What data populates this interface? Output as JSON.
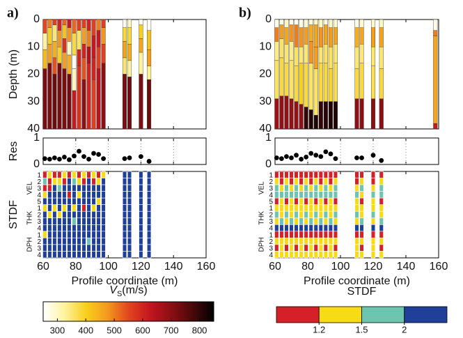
{
  "chart_data": [
    {
      "type": "profile",
      "panel_label": "a)",
      "ylabel_depth": "Depth (m)",
      "ylabel_res": "Res",
      "ylabel_stdf": "STDF",
      "xlabel": "Profile coordinate (m)",
      "xlim": [
        60,
        160
      ],
      "xticks": [
        60,
        80,
        100,
        120,
        140,
        160
      ],
      "ylim": [
        40,
        0
      ],
      "yticks": [
        0,
        10,
        20,
        30,
        40
      ],
      "res_ylim": [
        0,
        1
      ],
      "res_yticks": [
        0,
        1
      ],
      "res_grid": true,
      "stdf_groups": [
        {
          "name": "VEL",
          "rows": [
            1,
            2,
            3,
            4,
            5
          ]
        },
        {
          "name": "THK",
          "rows": [
            1,
            2,
            3,
            4
          ]
        },
        {
          "name": "DPH",
          "rows": [
            1,
            2,
            3,
            4
          ]
        }
      ],
      "x": [
        61,
        64,
        67,
        70,
        73,
        76,
        79,
        82,
        85,
        88,
        91,
        94,
        97,
        110,
        113,
        120,
        125
      ],
      "depths": [
        [
          5,
          11,
          18,
          40
        ],
        [
          3,
          9,
          16,
          40
        ],
        [
          2,
          8,
          14,
          20,
          40
        ],
        [
          4,
          10,
          16,
          40
        ],
        [
          2,
          7,
          12,
          18,
          40
        ],
        [
          3,
          8,
          13,
          20,
          40
        ],
        [
          5,
          13,
          18,
          26,
          40
        ],
        [
          4,
          11,
          17,
          40
        ],
        [
          3,
          9,
          14,
          22,
          40
        ],
        [
          4,
          10,
          16,
          40
        ],
        [
          6,
          14,
          22,
          40
        ],
        [
          4,
          10,
          18,
          40
        ],
        [
          3,
          9,
          16,
          40
        ],
        [
          3,
          8,
          14,
          20,
          40
        ],
        [
          3,
          9,
          15,
          21,
          40
        ],
        [
          2,
          7,
          12,
          20,
          40
        ],
        [
          4,
          11,
          17,
          22,
          40
        ]
      ],
      "vs": [
        [
          550,
          320,
          430,
          720
        ],
        [
          500,
          400,
          470,
          720
        ],
        [
          560,
          350,
          450,
          540,
          740
        ],
        [
          600,
          480,
          400,
          720
        ],
        [
          520,
          420,
          580,
          470,
          720
        ],
        [
          620,
          480,
          300,
          450,
          730
        ],
        [
          520,
          380,
          260,
          300,
          620
        ],
        [
          560,
          360,
          600,
          580
        ],
        [
          560,
          470,
          600,
          540,
          700
        ],
        [
          600,
          500,
          650,
          600
        ],
        [
          560,
          620,
          600,
          560
        ],
        [
          500,
          620,
          560,
          640
        ],
        [
          560,
          480,
          560,
          700
        ],
        [
          260,
          380,
          460,
          350,
          720
        ],
        [
          300,
          380,
          450,
          320,
          730
        ],
        [
          260,
          400,
          460,
          330,
          720
        ],
        [
          260,
          420,
          470,
          330,
          740
        ]
      ],
      "res": [
        0.22,
        0.2,
        0.25,
        0.2,
        0.28,
        0.18,
        0.32,
        0.5,
        0.3,
        0.2,
        0.42,
        0.38,
        0.22,
        0.22,
        0.25,
        0.3,
        0.12
      ],
      "stdf": [
        [
          1.1,
          1.8,
          1.1,
          1.3,
          2.5,
          1.3,
          2.5,
          2.5,
          2.5,
          1.3,
          2.5,
          2.5,
          2.5
        ],
        [
          1.3,
          1.1,
          1.1,
          2.5,
          2.5,
          2.5,
          1.3,
          2.5,
          2.5,
          2.5,
          2.5,
          2.5,
          2.5
        ],
        [
          1.1,
          1.3,
          2.5,
          2.5,
          2.5,
          1.3,
          2.5,
          2.5,
          2.5,
          2.5,
          2.5,
          2.5,
          2.5
        ],
        [
          1.1,
          1.3,
          1.8,
          2.5,
          2.5,
          2.5,
          1.3,
          2.5,
          2.5,
          2.5,
          2.5,
          2.5,
          2.5
        ],
        [
          1.3,
          1.1,
          2.5,
          2.5,
          2.5,
          1.3,
          2.5,
          2.5,
          2.5,
          2.5,
          2.5,
          2.5,
          2.5
        ],
        [
          1.1,
          2.5,
          2.5,
          1.1,
          2.5,
          2.5,
          2.5,
          2.5,
          2.5,
          2.5,
          2.5,
          2.5,
          2.5
        ],
        [
          1.3,
          1.8,
          2.5,
          2.5,
          2.5,
          1.3,
          2.5,
          1.8,
          2.5,
          2.5,
          2.5,
          2.5,
          2.5
        ],
        [
          1.1,
          1.3,
          2.5,
          1.3,
          2.5,
          2.5,
          2.5,
          2.5,
          2.5,
          2.5,
          2.5,
          2.5,
          2.5
        ],
        [
          1.3,
          1.1,
          2.5,
          2.5,
          2.5,
          1.1,
          2.5,
          2.5,
          2.5,
          2.5,
          2.5,
          2.5,
          2.5
        ],
        [
          1.1,
          2.5,
          2.5,
          2.5,
          2.5,
          2.5,
          2.5,
          2.5,
          2.5,
          2.5,
          1.8,
          2.5,
          2.5
        ],
        [
          1.3,
          1.1,
          2.5,
          2.5,
          2.5,
          1.3,
          2.5,
          2.5,
          2.5,
          2.5,
          2.5,
          2.5,
          2.5
        ],
        [
          1.1,
          1.3,
          2.5,
          2.5,
          1.3,
          2.5,
          2.5,
          2.5,
          2.5,
          2.5,
          2.5,
          2.5,
          2.5
        ],
        [
          1.3,
          2.5,
          2.5,
          2.5,
          2.5,
          2.5,
          2.5,
          2.5,
          2.5,
          2.5,
          2.5,
          2.5,
          2.5
        ],
        [
          2.5,
          2.5,
          2.5,
          2.5,
          2.5,
          2.5,
          2.5,
          2.5,
          2.5,
          2.5,
          2.5,
          2.5,
          2.5
        ],
        [
          2.5,
          2.5,
          2.5,
          2.5,
          2.5,
          2.5,
          2.5,
          2.5,
          2.5,
          2.5,
          2.5,
          2.5,
          2.5
        ],
        [
          2.5,
          2.5,
          2.5,
          2.5,
          2.5,
          2.5,
          2.5,
          2.5,
          2.5,
          2.5,
          2.5,
          2.5,
          2.5
        ],
        [
          2.5,
          2.5,
          2.5,
          2.5,
          2.5,
          2.5,
          2.5,
          2.5,
          2.5,
          2.5,
          2.5,
          2.5,
          2.5
        ]
      ]
    },
    {
      "type": "profile",
      "panel_label": "b)",
      "xlabel": "Profile coordinate (m)",
      "xlim": [
        60,
        160
      ],
      "xticks": [
        60,
        80,
        100,
        120,
        140,
        160
      ],
      "ylim": [
        40,
        0
      ],
      "yticks": [
        0,
        10,
        20,
        30,
        40
      ],
      "res_ylim": [
        0,
        1
      ],
      "res_yticks": [
        0,
        1
      ],
      "res_grid": true,
      "stdf_groups": [
        {
          "name": "VEL",
          "rows": [
            1,
            2,
            3,
            4,
            5
          ]
        },
        {
          "name": "THK",
          "rows": [
            1,
            2,
            3,
            4
          ]
        },
        {
          "name": "DPH",
          "rows": [
            1,
            2,
            3,
            4
          ]
        }
      ],
      "x": [
        61,
        64,
        67,
        70,
        73,
        76,
        79,
        82,
        85,
        88,
        91,
        94,
        97,
        110,
        113,
        120,
        125,
        158
      ],
      "depths": [
        [
          3,
          8,
          15,
          29,
          40
        ],
        [
          2,
          7,
          14,
          28,
          40
        ],
        [
          3,
          9,
          16,
          28,
          40
        ],
        [
          2,
          8,
          15,
          29,
          40
        ],
        [
          2,
          10,
          17,
          30,
          40
        ],
        [
          3,
          10,
          16,
          31,
          40
        ],
        [
          3,
          9,
          16,
          32,
          40
        ],
        [
          2,
          8,
          16,
          33,
          40
        ],
        [
          2,
          10,
          18,
          35,
          40
        ],
        [
          3,
          10,
          16,
          30,
          40
        ],
        [
          2,
          9,
          16,
          30,
          40
        ],
        [
          3,
          10,
          18,
          30,
          40
        ],
        [
          3,
          9,
          16,
          30,
          40
        ],
        [
          3,
          10,
          18,
          29,
          40
        ],
        [
          3,
          9,
          16,
          29,
          40
        ],
        [
          3,
          10,
          17,
          29,
          40
        ],
        [
          3,
          10,
          18,
          29,
          40
        ],
        [
          4,
          6,
          38,
          40
        ]
      ],
      "vs": [
        [
          270,
          500,
          340,
          360,
          680
        ],
        [
          270,
          470,
          360,
          380,
          690
        ],
        [
          300,
          460,
          350,
          380,
          690
        ],
        [
          270,
          480,
          340,
          360,
          690
        ],
        [
          260,
          500,
          360,
          380,
          690
        ],
        [
          270,
          480,
          350,
          400,
          700
        ],
        [
          290,
          470,
          350,
          380,
          800
        ],
        [
          280,
          450,
          480,
          360,
          820
        ],
        [
          300,
          460,
          470,
          360,
          820
        ],
        [
          300,
          480,
          350,
          380,
          800
        ],
        [
          270,
          460,
          360,
          380,
          810
        ],
        [
          290,
          470,
          360,
          390,
          820
        ],
        [
          290,
          460,
          350,
          370,
          820
        ],
        [
          270,
          450,
          350,
          380,
          700
        ],
        [
          290,
          460,
          350,
          380,
          700
        ],
        [
          290,
          470,
          350,
          370,
          700
        ],
        [
          300,
          460,
          350,
          380,
          700
        ],
        [
          270,
          500,
          460,
          620
        ]
      ],
      "res": [
        0.25,
        0.22,
        0.3,
        0.25,
        0.35,
        0.2,
        0.28,
        0.42,
        0.35,
        0.3,
        0.48,
        0.4,
        0.22,
        0.25,
        0.25,
        0.35,
        0.15,
        null
      ],
      "stdf": [
        [
          1.1,
          1.3,
          1.8,
          1.8,
          1.1,
          1.3,
          1.8,
          1.3,
          2.5,
          1.1,
          1.3,
          1.1,
          1.3
        ],
        [
          1.1,
          1.1,
          1.3,
          1.8,
          1.3,
          1.3,
          1.3,
          1.8,
          2.5,
          1.1,
          1.3,
          1.3,
          1.3
        ],
        [
          1.1,
          1.3,
          1.8,
          1.8,
          1.1,
          1.3,
          1.8,
          1.3,
          2.5,
          1.1,
          1.3,
          1.1,
          1.3
        ],
        [
          1.1,
          1.1,
          1.3,
          1.8,
          1.3,
          1.3,
          1.3,
          1.8,
          2.5,
          1.1,
          1.3,
          1.3,
          1.3
        ],
        [
          1.1,
          1.3,
          1.8,
          1.8,
          1.1,
          1.3,
          1.8,
          1.3,
          2.5,
          1.1,
          1.3,
          1.1,
          1.3
        ],
        [
          1.1,
          1.1,
          1.3,
          1.8,
          1.3,
          1.3,
          1.3,
          1.8,
          2.5,
          1.1,
          1.3,
          1.3,
          1.3
        ],
        [
          1.1,
          1.3,
          1.8,
          1.8,
          1.1,
          1.3,
          1.8,
          1.3,
          2.5,
          1.1,
          1.3,
          1.1,
          1.3
        ],
        [
          1.1,
          1.1,
          1.3,
          1.8,
          1.3,
          1.3,
          1.3,
          1.8,
          2.5,
          1.1,
          1.3,
          1.3,
          1.3
        ],
        [
          1.1,
          1.3,
          1.8,
          1.8,
          1.1,
          1.3,
          1.8,
          1.3,
          2.5,
          1.1,
          1.3,
          1.1,
          1.3
        ],
        [
          1.1,
          1.1,
          1.3,
          1.8,
          1.3,
          1.3,
          1.3,
          1.8,
          2.5,
          1.1,
          1.3,
          1.3,
          1.3
        ],
        [
          1.1,
          1.3,
          1.8,
          1.8,
          1.1,
          1.3,
          1.8,
          1.3,
          2.5,
          1.1,
          1.3,
          1.1,
          1.3
        ],
        [
          1.1,
          1.1,
          1.3,
          1.8,
          1.3,
          1.3,
          1.3,
          1.8,
          2.5,
          1.1,
          1.3,
          1.3,
          1.3
        ],
        [
          1.1,
          1.3,
          1.8,
          1.8,
          1.1,
          1.3,
          1.8,
          1.3,
          2.5,
          1.1,
          1.3,
          1.1,
          1.3
        ],
        [
          1.1,
          1.1,
          1.3,
          1.8,
          1.3,
          1.3,
          1.8,
          1.3,
          2.5,
          1.1,
          1.3,
          1.3,
          1.3
        ],
        [
          1.1,
          1.3,
          1.8,
          1.3,
          1.1,
          1.3,
          1.3,
          1.8,
          2.5,
          1.1,
          1.3,
          1.1,
          1.3
        ],
        [
          1.1,
          1.1,
          1.3,
          1.8,
          1.3,
          1.3,
          1.8,
          1.3,
          2.5,
          1.1,
          1.3,
          1.3,
          1.3
        ],
        [
          1.1,
          1.3,
          1.8,
          1.8,
          1.1,
          1.3,
          1.3,
          1.8,
          2.5,
          1.1,
          1.3,
          1.1,
          1.3
        ],
        null
      ]
    }
  ],
  "colormaps": {
    "vs": {
      "label_main": "V",
      "label_sub": "S",
      "label_rest": "(m/s)",
      "lim": [
        250,
        850
      ],
      "ticks": [
        300,
        400,
        500,
        600,
        700,
        800
      ],
      "colors": [
        "#ffffff",
        "#fff3a0",
        "#f8d01c",
        "#f39a1e",
        "#e2471f",
        "#c4151f",
        "#8b0f13",
        "#4a0909",
        "#000000"
      ]
    },
    "stdf": {
      "label": "STDF",
      "ticks": [
        1.2,
        1.5,
        2
      ],
      "colors": [
        "#d42027",
        "#f7db16",
        "#6dc5b0",
        "#1f3f99"
      ]
    }
  }
}
